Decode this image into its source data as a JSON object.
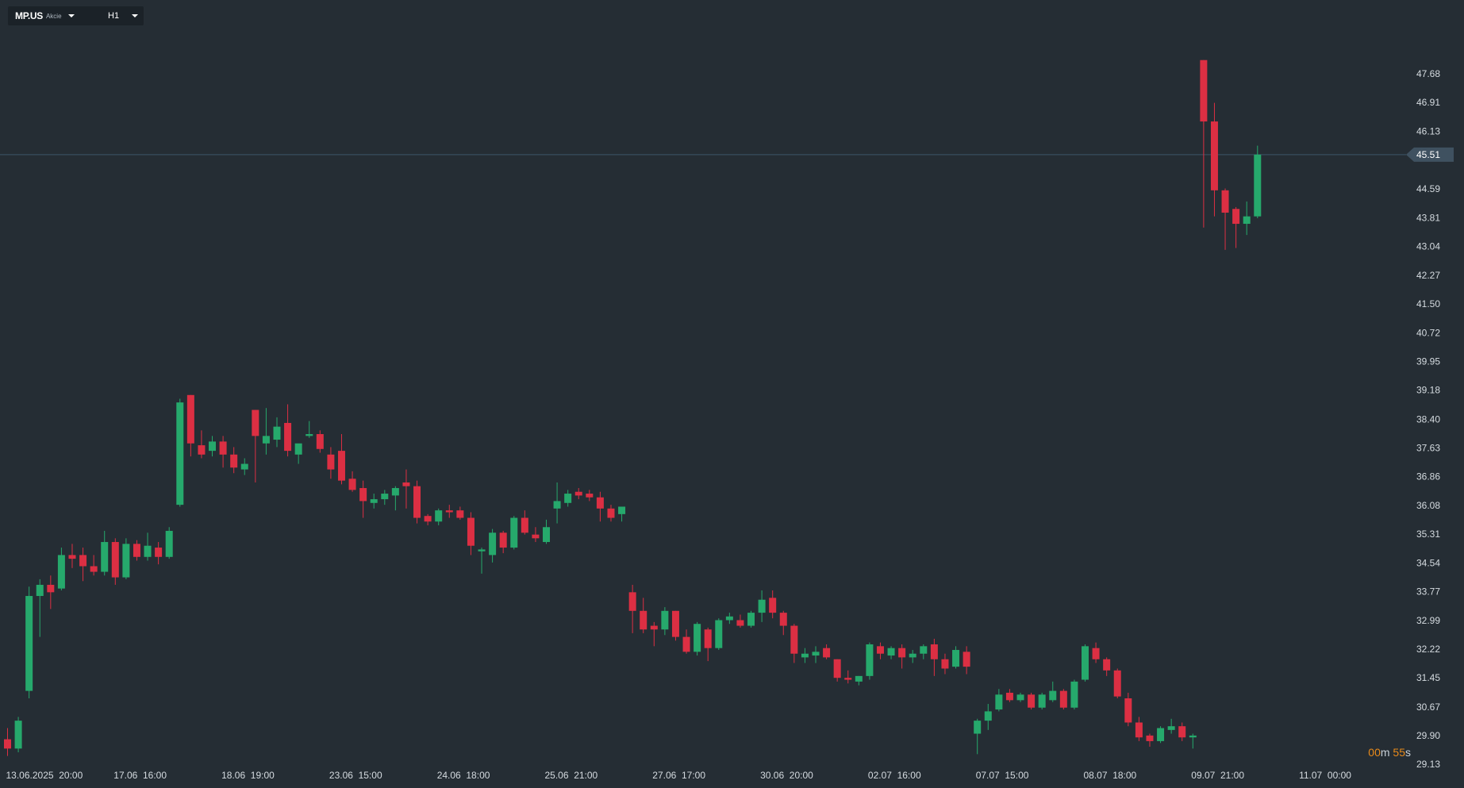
{
  "toolbar": {
    "symbol": "MP.US",
    "symbol_type": "Akcie",
    "timeframe": "H1",
    "symbol_caret_icon": "caret-down-icon",
    "timeframe_caret_icon": "caret-down-icon"
  },
  "countdown": {
    "minutes": "00",
    "m_unit": "m",
    "seconds": "55",
    "s_unit": "s"
  },
  "colors": {
    "background": "#252d34",
    "up": "#26a96c",
    "down": "#dc2f43",
    "axis_text": "#d5dbe0",
    "current_price_line": "#3c5668",
    "current_price_tag": "#3f5160",
    "countdown": "#e88a1a"
  },
  "chart_data": {
    "type": "candlestick",
    "title": "",
    "xlabel": "",
    "ylabel": "",
    "ylim": [
      29.13,
      48.47
    ],
    "y_ticks": [
      "47.68",
      "46.91",
      "46.13",
      "44.59",
      "43.81",
      "43.04",
      "42.27",
      "41.50",
      "40.72",
      "39.95",
      "39.18",
      "38.40",
      "37.63",
      "36.86",
      "36.08",
      "35.31",
      "34.54",
      "33.77",
      "32.99",
      "32.22",
      "31.45",
      "30.67",
      "29.90",
      "29.13"
    ],
    "x_labels": [
      "13.06.2025  20:00",
      "17.06  16:00",
      "18.06  19:00",
      "23.06  15:00",
      "24.06  18:00",
      "25.06  21:00",
      "27.06  17:00",
      "30.06  20:00",
      "02.07  16:00",
      "07.07  15:00",
      "08.07  18:00",
      "09.07  21:00",
      "11.07  00:00"
    ],
    "x_label_index": [
      0,
      10,
      20,
      30,
      40,
      50,
      60,
      70,
      80,
      90,
      100,
      110,
      120
    ],
    "current_price": "45.51",
    "candles": [
      [
        29.8,
        30.1,
        29.35,
        29.55
      ],
      [
        29.55,
        30.4,
        29.45,
        30.3
      ],
      [
        31.1,
        33.9,
        30.9,
        33.65
      ],
      [
        33.65,
        34.1,
        32.55,
        33.95
      ],
      [
        33.95,
        34.2,
        33.3,
        33.75
      ],
      [
        33.85,
        34.95,
        33.8,
        34.75
      ],
      [
        34.75,
        35.05,
        34.4,
        34.65
      ],
      [
        34.75,
        34.95,
        34.05,
        34.45
      ],
      [
        34.45,
        34.75,
        34.2,
        34.3
      ],
      [
        34.3,
        35.4,
        34.2,
        35.1
      ],
      [
        35.1,
        35.2,
        33.95,
        34.15
      ],
      [
        34.15,
        35.2,
        34.1,
        35.05
      ],
      [
        35.05,
        35.15,
        34.6,
        34.7
      ],
      [
        34.7,
        35.35,
        34.6,
        35.0
      ],
      [
        34.95,
        35.1,
        34.5,
        34.7
      ],
      [
        34.7,
        35.5,
        34.65,
        35.4
      ],
      [
        36.1,
        38.95,
        36.05,
        38.85
      ],
      [
        39.05,
        39.05,
        37.4,
        37.75
      ],
      [
        37.7,
        38.1,
        37.35,
        37.45
      ],
      [
        37.55,
        37.95,
        37.4,
        37.8
      ],
      [
        37.8,
        37.95,
        37.1,
        37.45
      ],
      [
        37.45,
        37.65,
        36.95,
        37.1
      ],
      [
        37.05,
        37.35,
        36.9,
        37.2
      ],
      [
        38.65,
        38.65,
        36.7,
        37.95
      ],
      [
        37.75,
        38.7,
        37.45,
        37.95
      ],
      [
        37.85,
        38.45,
        37.65,
        38.2
      ],
      [
        38.3,
        38.8,
        37.4,
        37.55
      ],
      [
        37.45,
        37.7,
        37.2,
        37.75
      ],
      [
        37.95,
        38.35,
        37.9,
        38.0
      ],
      [
        38.0,
        38.1,
        37.5,
        37.6
      ],
      [
        37.45,
        37.65,
        36.8,
        37.05
      ],
      [
        37.55,
        38.0,
        36.65,
        36.75
      ],
      [
        36.8,
        37.0,
        36.45,
        36.5
      ],
      [
        36.55,
        36.75,
        35.75,
        36.2
      ],
      [
        36.15,
        36.4,
        36.0,
        36.25
      ],
      [
        36.25,
        36.5,
        36.1,
        36.4
      ],
      [
        36.35,
        36.6,
        35.95,
        36.55
      ],
      [
        36.7,
        37.05,
        36.0,
        36.6
      ],
      [
        36.6,
        36.75,
        35.6,
        35.75
      ],
      [
        35.8,
        35.85,
        35.55,
        35.65
      ],
      [
        35.65,
        36.0,
        35.55,
        35.95
      ],
      [
        35.95,
        36.1,
        35.75,
        35.9
      ],
      [
        35.95,
        36.05,
        35.7,
        35.75
      ],
      [
        35.75,
        35.9,
        34.75,
        35.0
      ],
      [
        34.85,
        34.95,
        34.25,
        34.9
      ],
      [
        34.75,
        35.45,
        34.55,
        35.35
      ],
      [
        35.35,
        35.4,
        34.8,
        34.95
      ],
      [
        34.95,
        35.8,
        34.9,
        35.75
      ],
      [
        35.75,
        35.95,
        35.3,
        35.35
      ],
      [
        35.3,
        35.5,
        35.1,
        35.2
      ],
      [
        35.1,
        35.7,
        35.05,
        35.5
      ],
      [
        36.0,
        36.7,
        35.6,
        36.2
      ],
      [
        36.15,
        36.5,
        36.05,
        36.4
      ],
      [
        36.45,
        36.55,
        36.25,
        36.35
      ],
      [
        36.4,
        36.5,
        36.2,
        36.3
      ],
      [
        36.3,
        36.45,
        35.65,
        36.0
      ],
      [
        36.0,
        36.1,
        35.65,
        35.75
      ],
      [
        35.85,
        36.05,
        35.65,
        36.05
      ],
      [
        33.75,
        33.95,
        32.65,
        33.25
      ],
      [
        33.25,
        33.6,
        32.65,
        32.75
      ],
      [
        32.85,
        32.95,
        32.3,
        32.75
      ],
      [
        32.75,
        33.35,
        32.6,
        33.25
      ],
      [
        33.25,
        33.25,
        32.45,
        32.55
      ],
      [
        32.55,
        32.75,
        32.1,
        32.15
      ],
      [
        32.15,
        32.95,
        32.05,
        32.9
      ],
      [
        32.75,
        32.8,
        31.9,
        32.25
      ],
      [
        32.25,
        33.05,
        32.2,
        33.0
      ],
      [
        33.0,
        33.2,
        32.9,
        33.1
      ],
      [
        33.0,
        33.15,
        32.8,
        32.85
      ],
      [
        32.85,
        33.25,
        32.8,
        33.2
      ],
      [
        33.2,
        33.8,
        32.95,
        33.55
      ],
      [
        33.6,
        33.8,
        33.05,
        33.2
      ],
      [
        33.2,
        33.25,
        32.6,
        32.85
      ],
      [
        32.85,
        32.9,
        31.85,
        32.1
      ],
      [
        32.0,
        32.25,
        31.85,
        32.1
      ],
      [
        32.05,
        32.3,
        31.85,
        32.15
      ],
      [
        32.25,
        32.35,
        31.95,
        32.0
      ],
      [
        31.95,
        31.95,
        31.35,
        31.45
      ],
      [
        31.45,
        31.65,
        31.3,
        31.4
      ],
      [
        31.35,
        31.5,
        31.25,
        31.5
      ],
      [
        31.5,
        32.4,
        31.4,
        32.35
      ],
      [
        32.3,
        32.4,
        31.95,
        32.1
      ],
      [
        32.05,
        32.3,
        31.95,
        32.25
      ],
      [
        32.25,
        32.35,
        31.7,
        32.0
      ],
      [
        32.0,
        32.2,
        31.85,
        32.1
      ],
      [
        32.1,
        32.35,
        31.95,
        32.3
      ],
      [
        32.35,
        32.5,
        31.5,
        31.95
      ],
      [
        31.95,
        32.1,
        31.55,
        31.7
      ],
      [
        31.75,
        32.3,
        31.7,
        32.2
      ],
      [
        32.15,
        32.3,
        31.55,
        31.75
      ],
      [
        29.95,
        30.35,
        29.4,
        30.3
      ],
      [
        30.3,
        30.75,
        30.05,
        30.55
      ],
      [
        30.6,
        31.15,
        30.55,
        31.0
      ],
      [
        31.05,
        31.15,
        30.8,
        30.85
      ],
      [
        30.85,
        31.05,
        30.8,
        31.0
      ],
      [
        31.0,
        31.05,
        30.6,
        30.65
      ],
      [
        30.65,
        31.05,
        30.6,
        31.0
      ],
      [
        30.85,
        31.35,
        30.8,
        31.1
      ],
      [
        31.1,
        31.15,
        30.6,
        30.65
      ],
      [
        30.65,
        31.4,
        30.6,
        31.35
      ],
      [
        31.4,
        32.35,
        31.35,
        32.3
      ],
      [
        32.25,
        32.4,
        31.85,
        31.95
      ],
      [
        31.95,
        32.0,
        31.5,
        31.65
      ],
      [
        31.65,
        31.7,
        30.9,
        30.95
      ],
      [
        30.9,
        31.05,
        30.15,
        30.25
      ],
      [
        30.25,
        30.4,
        29.75,
        29.85
      ],
      [
        29.9,
        29.95,
        29.6,
        29.75
      ],
      [
        29.75,
        30.15,
        29.7,
        30.1
      ],
      [
        30.05,
        30.35,
        29.95,
        30.15
      ],
      [
        30.15,
        30.25,
        29.75,
        29.85
      ],
      [
        29.85,
        29.95,
        29.55,
        29.9
      ],
      [
        48.05,
        48.05,
        43.55,
        46.4
      ],
      [
        46.4,
        46.9,
        43.85,
        44.55
      ],
      [
        44.55,
        44.6,
        42.95,
        43.95
      ],
      [
        44.05,
        44.1,
        43.0,
        43.65
      ],
      [
        43.65,
        44.25,
        43.35,
        43.85
      ],
      [
        43.85,
        45.75,
        43.8,
        45.51
      ]
    ],
    "candle_slots": [
      0,
      1,
      2,
      3,
      4,
      5,
      6,
      7,
      8,
      9,
      10,
      11,
      12,
      13,
      14,
      15,
      16,
      17,
      18,
      19,
      20,
      21,
      22,
      23,
      24,
      25,
      26,
      27,
      28,
      29,
      30,
      31,
      32,
      33,
      34,
      35,
      36,
      37,
      38,
      39,
      40,
      41,
      42,
      43,
      44,
      45,
      46,
      47,
      48,
      49,
      50,
      51,
      52,
      53,
      54,
      55,
      56,
      57,
      58,
      59,
      60,
      61,
      62,
      63,
      64,
      65,
      66,
      67,
      68,
      69,
      70,
      71,
      72,
      73,
      74,
      75,
      76,
      77,
      78,
      79,
      80,
      81,
      82,
      83,
      84,
      85,
      86,
      87,
      88,
      89,
      90,
      91,
      92,
      93,
      94,
      95,
      96,
      97,
      98,
      99,
      100,
      101,
      102,
      103,
      104,
      105,
      106,
      107,
      108,
      109,
      110,
      111,
      112,
      113,
      114,
      115,
      116
    ],
    "grid": false,
    "legend": "none"
  }
}
